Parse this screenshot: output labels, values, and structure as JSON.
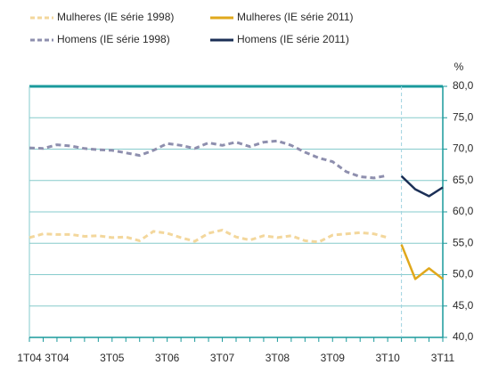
{
  "chart_data": {
    "type": "line",
    "y_unit": "%",
    "categories": [
      "1T04",
      null,
      "3T04",
      null,
      null,
      null,
      "3T05",
      null,
      null,
      null,
      "3T06",
      null,
      null,
      null,
      "3T07",
      null,
      null,
      null,
      "3T08",
      null,
      null,
      null,
      "3T09",
      null,
      null,
      null,
      "3T10",
      null,
      null,
      null,
      "3T11"
    ],
    "series": [
      {
        "name": "Mulheres (IE série 1998)",
        "color": "#f3d79c",
        "dashed": true,
        "values": [
          55.9,
          56.5,
          56.4,
          56.4,
          56.1,
          56.2,
          55.9,
          56.0,
          55.4,
          56.9,
          56.6,
          55.9,
          55.3,
          56.6,
          57.1,
          56.0,
          55.5,
          56.2,
          55.9,
          56.2,
          55.4,
          55.2,
          56.3,
          56.5,
          56.7,
          56.5,
          55.9,
          null,
          null,
          null,
          null
        ]
      },
      {
        "name": "Mulheres (IE série 2011)",
        "color": "#e0a81c",
        "dashed": false,
        "values": [
          null,
          null,
          null,
          null,
          null,
          null,
          null,
          null,
          null,
          null,
          null,
          null,
          null,
          null,
          null,
          null,
          null,
          null,
          null,
          null,
          null,
          null,
          null,
          null,
          null,
          null,
          null,
          54.8,
          49.3,
          51.0,
          49.3
        ]
      },
      {
        "name": "Homens (IE série 1998)",
        "color": "#8e8fae",
        "dashed": true,
        "values": [
          70.2,
          70.1,
          70.7,
          70.5,
          70.1,
          69.9,
          69.8,
          69.4,
          69.0,
          69.8,
          70.9,
          70.6,
          70.1,
          71.0,
          70.6,
          71.1,
          70.4,
          71.1,
          71.3,
          70.6,
          69.5,
          68.6,
          68.0,
          66.4,
          65.6,
          65.4,
          65.8,
          null,
          null,
          null,
          null
        ]
      },
      {
        "name": "Homens (IE série 2011)",
        "color": "#1b2f56",
        "dashed": false,
        "values": [
          null,
          null,
          null,
          null,
          null,
          null,
          null,
          null,
          null,
          null,
          null,
          null,
          null,
          null,
          null,
          null,
          null,
          null,
          null,
          null,
          null,
          null,
          null,
          null,
          null,
          null,
          null,
          65.7,
          63.6,
          62.5,
          63.9
        ]
      }
    ],
    "ylim": [
      40,
      80
    ],
    "yticks": [
      {
        "value": 40,
        "label": "40,0"
      },
      {
        "value": 45,
        "label": "45,0"
      },
      {
        "value": 50,
        "label": "50,0"
      },
      {
        "value": 55,
        "label": "55,0"
      },
      {
        "value": 60,
        "label": "60,0"
      },
      {
        "value": 65,
        "label": "65,0"
      },
      {
        "value": 70,
        "label": "70,0"
      },
      {
        "value": 75,
        "label": "75,0"
      },
      {
        "value": 80,
        "label": "80,0"
      }
    ],
    "grid": true
  }
}
